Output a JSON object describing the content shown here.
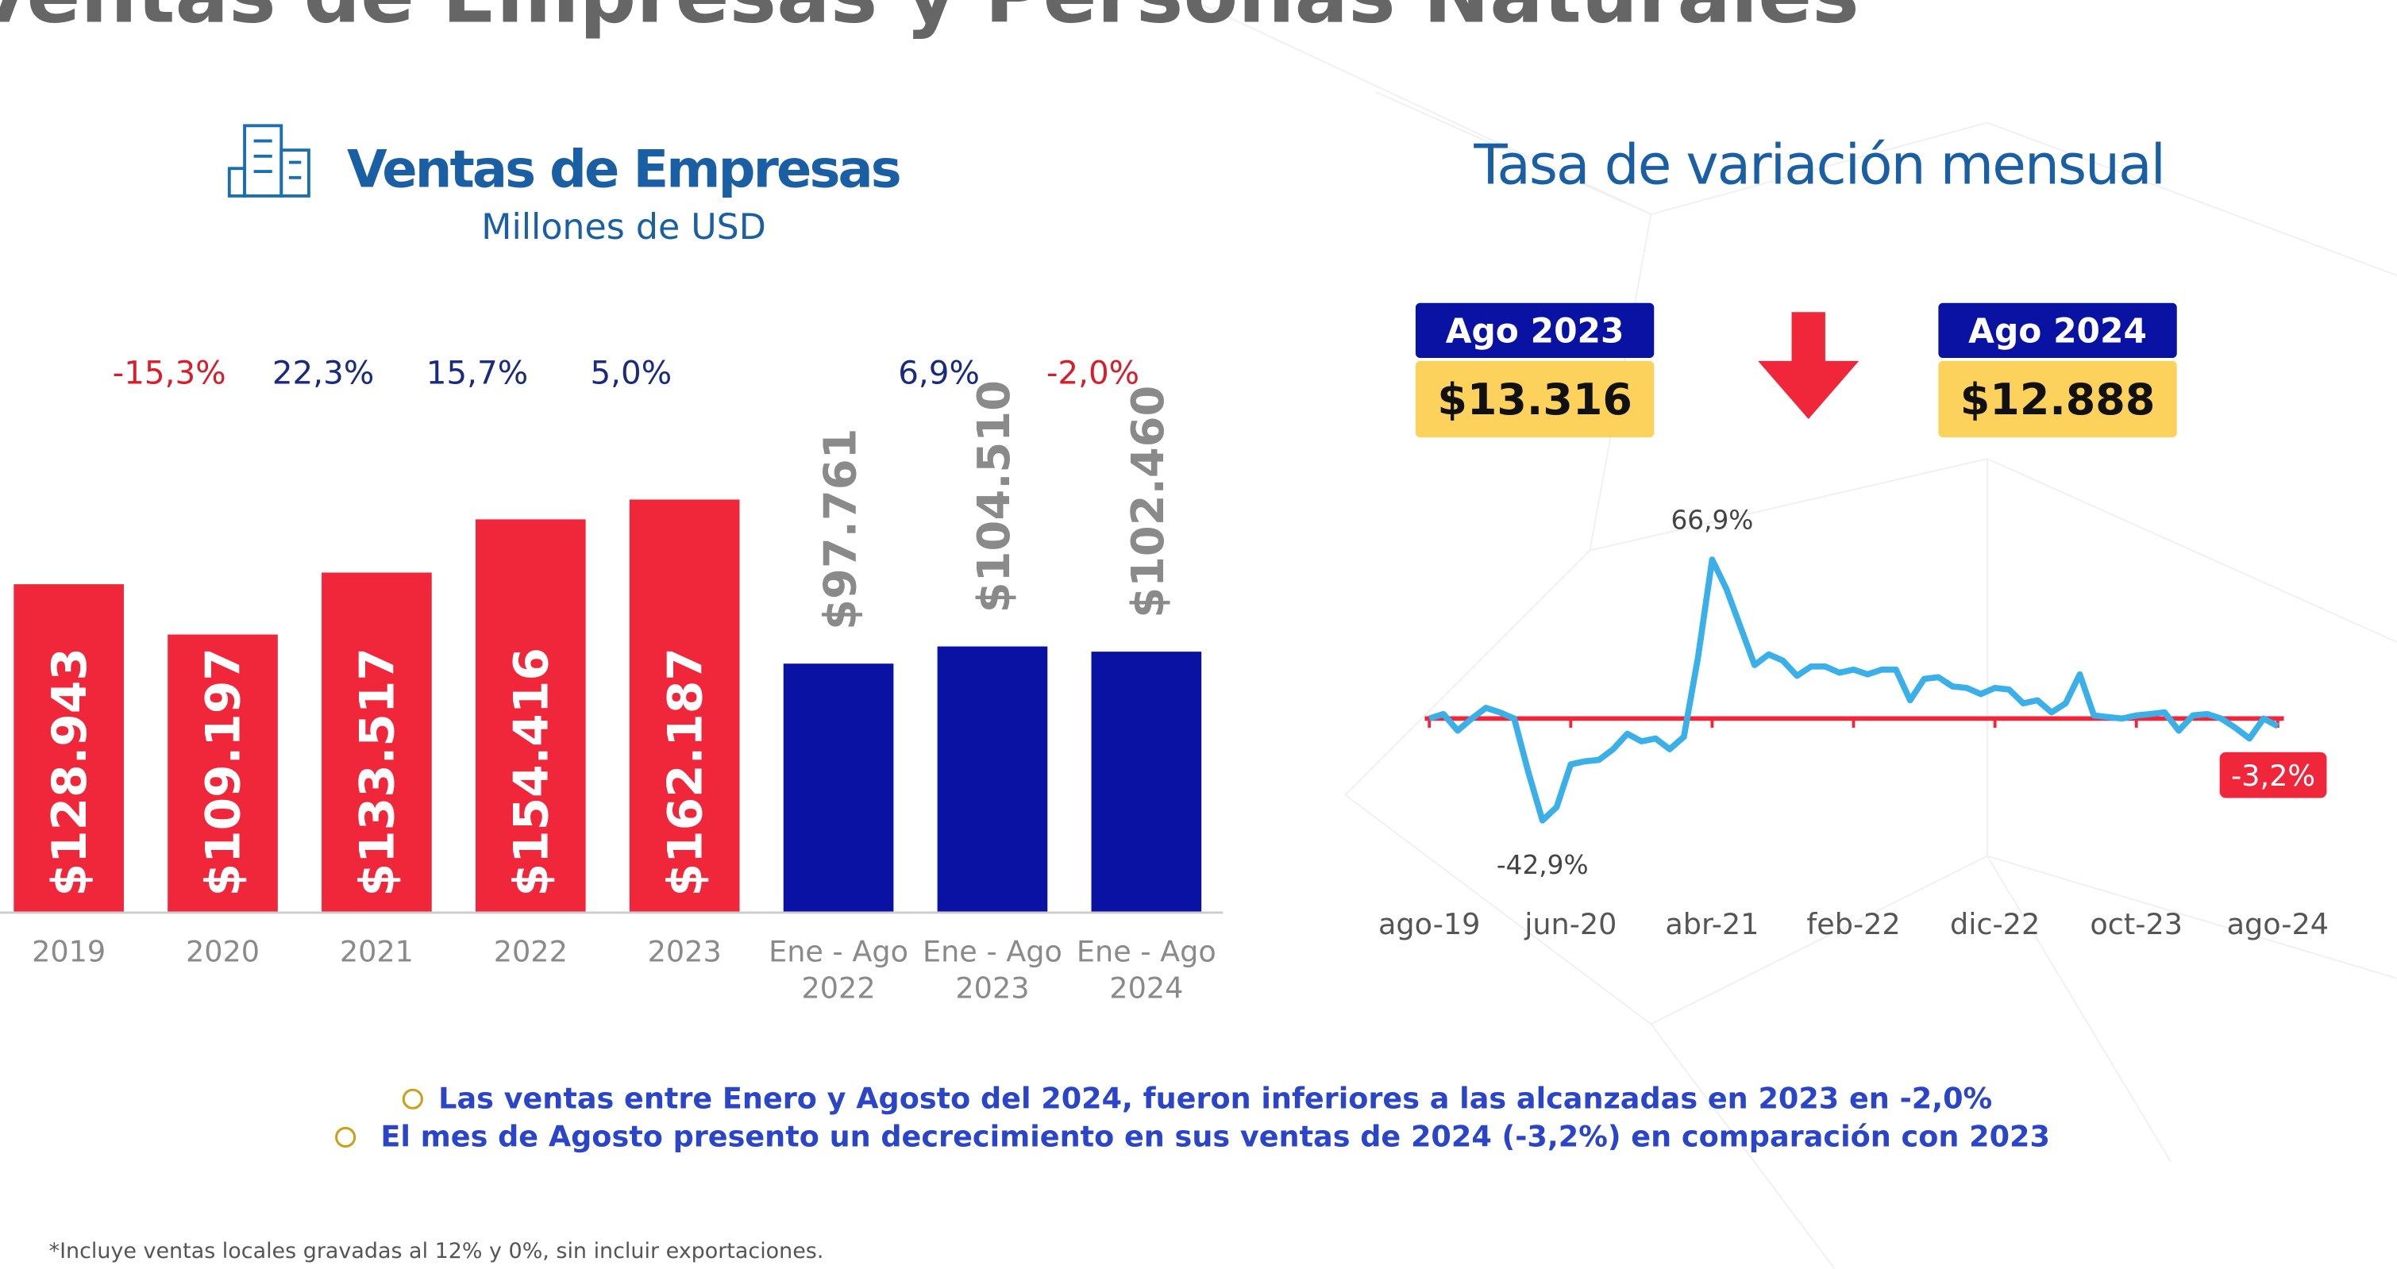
{
  "title": "Ventas de Empresas y Personas Naturales",
  "chart_data": [
    {
      "type": "bar",
      "title": "Ventas de Empresas",
      "subtitle": "Millones de USD",
      "categories": [
        "2019",
        "2020",
        "2021",
        "2022",
        "2023",
        "Ene - Ago 2022",
        "Ene - Ago 2023",
        "Ene - Ago 2024"
      ],
      "values": [
        128943,
        109197,
        133517,
        154416,
        162187,
        97761,
        104510,
        102460
      ],
      "value_labels": [
        "$128.943",
        "$109.197",
        "$133.517",
        "$154.416",
        "$162.187",
        "$97.761",
        "$104.510",
        "$102.460"
      ],
      "colors": [
        "#f0263a",
        "#f0263a",
        "#f0263a",
        "#f0263a",
        "#f0263a",
        "#0a12a3",
        "#0a12a3",
        "#0a12a3"
      ],
      "label_inside": [
        true,
        true,
        true,
        true,
        true,
        false,
        false,
        false
      ],
      "growth_labels": [
        null,
        "-15,3%",
        "22,3%",
        "15,7%",
        "5,0%",
        null,
        "6,9%",
        "-2,0%"
      ],
      "ylim": [
        0,
        180000
      ]
    },
    {
      "type": "line",
      "title": "Tasa de variación mensual",
      "categories": [
        "ago-19",
        null,
        null,
        null,
        null,
        null,
        null,
        null,
        null,
        null,
        "jun-20",
        null,
        null,
        null,
        null,
        null,
        null,
        null,
        null,
        null,
        "abr-21",
        null,
        null,
        null,
        null,
        null,
        null,
        null,
        null,
        null,
        "feb-22",
        null,
        null,
        null,
        null,
        null,
        null,
        null,
        null,
        null,
        "dic-22",
        null,
        null,
        null,
        null,
        null,
        null,
        null,
        null,
        null,
        "oct-23",
        null,
        null,
        null,
        null,
        null,
        null,
        null,
        null,
        null,
        "ago-24"
      ],
      "values": [
        0,
        1.9,
        -5.1,
        0,
        4.5,
        2.6,
        0,
        -22.5,
        -42.9,
        -37.3,
        -19.3,
        -18.0,
        -17.4,
        -12.9,
        -6.4,
        -9.6,
        -8.4,
        -12.9,
        -7.7,
        25.7,
        66.9,
        54.7,
        38.6,
        22.5,
        27.0,
        24.4,
        18.0,
        21.9,
        21.9,
        19.3,
        20.6,
        18.6,
        20.6,
        20.6,
        7.7,
        16.7,
        17.4,
        13.5,
        12.9,
        10.3,
        12.9,
        12.2,
        6.4,
        7.7,
        2.6,
        6.4,
        18.6,
        1.3,
        0.6,
        0,
        1.3,
        1.9,
        2.6,
        -5.1,
        1.3,
        1.9,
        0,
        -3.9,
        -8.4,
        0,
        -3.2
      ],
      "value_labels": [
        null,
        null,
        null,
        null,
        null,
        null,
        null,
        null,
        "-42,9%",
        null,
        null,
        null,
        null,
        null,
        null,
        null,
        null,
        null,
        null,
        null,
        "66,9%",
        null,
        null,
        null,
        null,
        null,
        null,
        null,
        null,
        null,
        null,
        null,
        null,
        null,
        null,
        null,
        null,
        null,
        null,
        null,
        null,
        null,
        null,
        null,
        null,
        null,
        null,
        null,
        null,
        null,
        null,
        null,
        null,
        null,
        null,
        null,
        null,
        null,
        null,
        null,
        "-3,2%"
      ],
      "color": "#3bb0e8",
      "ylim": [
        -50,
        75
      ]
    }
  ],
  "highlights": [
    {
      "label": "Ago 2023",
      "value": "$13.316"
    },
    {
      "label": "Ago 2024",
      "value": "$12.888"
    }
  ],
  "notes": [
    "Las ventas entre Enero y Agosto del 2024, fueron inferiores a las alcanzadas en 2023 en -2,0%",
    "El mes de Agosto presento un decrecimiento en sus ventas de 2024 (-3,2%) en comparación con 2023"
  ],
  "footnote": "*Incluye ventas locales gravadas al 12% y 0%, sin incluir exportaciones."
}
